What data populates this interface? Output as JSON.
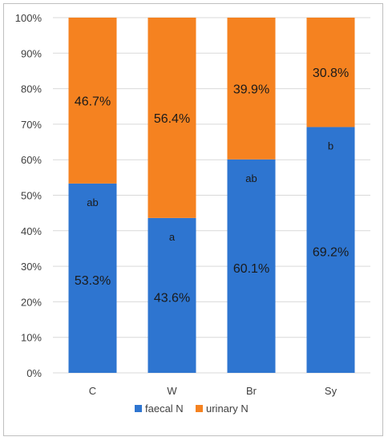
{
  "chart_data": {
    "type": "bar",
    "stacked": true,
    "categories": [
      "C",
      "W",
      "Br",
      "Sy"
    ],
    "series": [
      {
        "name": "faecal N",
        "values": [
          53.3,
          43.6,
          60.1,
          69.2
        ],
        "labels": [
          "53.3%",
          "43.6%",
          "60.1%",
          "69.2%"
        ],
        "color": "#2E75D0"
      },
      {
        "name": "urinary N",
        "values": [
          46.7,
          56.4,
          39.9,
          30.8
        ],
        "labels": [
          "46.7%",
          "56.4%",
          "39.9%",
          "30.8%"
        ],
        "color": "#F58220"
      }
    ],
    "significance_letters": [
      "ab",
      "a",
      "ab",
      "b"
    ],
    "ylim": [
      0,
      100
    ],
    "yticks": [
      "0%",
      "10%",
      "20%",
      "30%",
      "40%",
      "50%",
      "60%",
      "70%",
      "80%",
      "90%",
      "100%"
    ],
    "grid": true,
    "legend_position": "bottom",
    "title": "",
    "xlabel": "",
    "ylabel": ""
  }
}
